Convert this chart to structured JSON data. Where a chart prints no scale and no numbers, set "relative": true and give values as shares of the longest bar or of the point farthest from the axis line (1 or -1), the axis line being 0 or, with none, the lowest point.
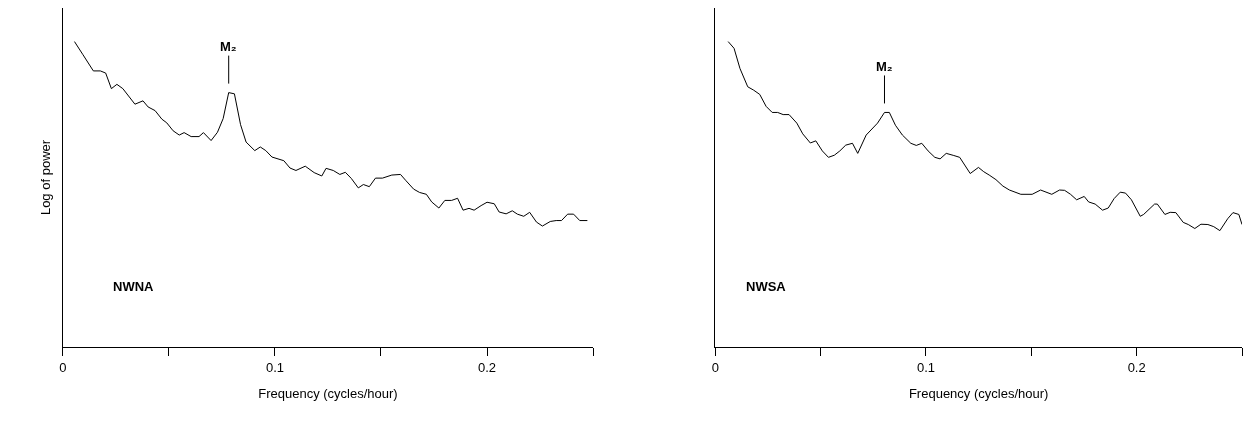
{
  "chart_data": [
    {
      "type": "line",
      "relative": true,
      "xlabel": "Frequency (cycles/hour)",
      "ylabel": "Log of power",
      "xlim": [
        0,
        0.25
      ],
      "xticks": [
        0,
        {
          "value": 0.05,
          "label": null
        },
        0.1,
        {
          "value": 0.15,
          "label": null
        },
        0.2,
        {
          "value": 0.25,
          "label": null
        }
      ],
      "tick_labels": "x",
      "annotations": [
        {
          "text": "M₂",
          "x": 0.0782,
          "y": 0.833
        },
        "NWNA"
      ],
      "series": [
        {
          "color": "#000000",
          "x": [
            0.0055,
            0.0095,
            0.0144,
            0.0177,
            0.0202,
            0.0229,
            0.0255,
            0.0283,
            0.034,
            0.0378,
            0.0402,
            0.0435,
            0.0467,
            0.049,
            0.052,
            0.0549,
            0.0572,
            0.0605,
            0.0642,
            0.0663,
            0.0699,
            0.0729,
            0.0756,
            0.0782,
            0.0809,
            0.0838,
            0.0864,
            0.0905,
            0.0931,
            0.0957,
            0.0986,
            0.1042,
            0.1071,
            0.1099,
            0.1143,
            0.1185,
            0.1221,
            0.1241,
            0.1275,
            0.1306,
            0.1332,
            0.136,
            0.1393,
            0.1417,
            0.1445,
            0.1474,
            0.1507,
            0.1551,
            0.1592,
            0.1616,
            0.1654,
            0.1682,
            0.1714,
            0.1739,
            0.1773,
            0.1801,
            0.1833,
            0.1861,
            0.1887,
            0.1915,
            0.1939,
            0.1972,
            0.2,
            0.2034,
            0.2057,
            0.209,
            0.2119,
            0.2143,
            0.2173,
            0.2201,
            0.2233,
            0.2261,
            0.2298,
            0.2326,
            0.2351,
            0.238,
            0.2408,
            0.2437,
            0.2473
          ],
          "values": [
            1.0,
            0.957,
            0.904,
            0.904,
            0.897,
            0.846,
            0.86,
            0.846,
            0.795,
            0.806,
            0.786,
            0.774,
            0.746,
            0.734,
            0.708,
            0.694,
            0.702,
            0.689,
            0.689,
            0.702,
            0.676,
            0.703,
            0.748,
            0.833,
            0.829,
            0.728,
            0.671,
            0.643,
            0.655,
            0.643,
            0.622,
            0.61,
            0.586,
            0.578,
            0.592,
            0.571,
            0.56,
            0.585,
            0.578,
            0.565,
            0.572,
            0.552,
            0.521,
            0.532,
            0.525,
            0.553,
            0.553,
            0.563,
            0.565,
            0.546,
            0.517,
            0.506,
            0.5,
            0.475,
            0.455,
            0.48,
            0.48,
            0.487,
            0.448,
            0.454,
            0.448,
            0.463,
            0.474,
            0.469,
            0.442,
            0.436,
            0.446,
            0.435,
            0.428,
            0.441,
            0.409,
            0.396,
            0.411,
            0.414,
            0.414,
            0.435,
            0.435,
            0.414,
            0.414
          ]
        }
      ]
    },
    {
      "type": "line",
      "relative": true,
      "xlabel": "Frequency (cycles/hour)",
      "xlim": [
        0,
        0.25
      ],
      "xticks": [
        0,
        {
          "value": 0.05,
          "label": null
        },
        0.1,
        {
          "value": 0.15,
          "label": null
        },
        0.2,
        {
          "value": 0.25,
          "label": null
        }
      ],
      "tick_labels": "x",
      "annotations": [
        {
          "text": "M₂",
          "x": 0.0803,
          "y": 0.768
        },
        "NWSA"
      ],
      "series": [
        {
          "color": "#000000",
          "x": [
            0.0061,
            0.0089,
            0.0117,
            0.0154,
            0.0182,
            0.0211,
            0.0241,
            0.027,
            0.0296,
            0.0322,
            0.035,
            0.0387,
            0.0415,
            0.0451,
            0.0477,
            0.0508,
            0.0537,
            0.0565,
            0.0591,
            0.0619,
            0.0651,
            0.0676,
            0.0716,
            0.077,
            0.0803,
            0.0826,
            0.0855,
            0.0888,
            0.0928,
            0.0954,
            0.098,
            0.101,
            0.1042,
            0.1067,
            0.1096,
            0.1132,
            0.116,
            0.121,
            0.1249,
            0.1274,
            0.13,
            0.1332,
            0.1365,
            0.1396,
            0.145,
            0.1504,
            0.1544,
            0.1597,
            0.1634,
            0.1658,
            0.1686,
            0.1715,
            0.1751,
            0.1772,
            0.1803,
            0.1838,
            0.1865,
            0.1893,
            0.1922,
            0.1947,
            0.1975,
            0.2017,
            0.2033,
            0.2085,
            0.2098,
            0.2134,
            0.2159,
            0.2186,
            0.2221,
            0.2245,
            0.2276,
            0.2305,
            0.2338,
            0.2366,
            0.2395,
            0.2432,
            0.2457,
            0.2485,
            0.25
          ],
          "values": [
            1.0,
            0.978,
            0.912,
            0.852,
            0.841,
            0.827,
            0.788,
            0.768,
            0.768,
            0.761,
            0.761,
            0.733,
            0.698,
            0.668,
            0.675,
            0.642,
            0.621,
            0.628,
            0.642,
            0.661,
            0.667,
            0.634,
            0.694,
            0.733,
            0.768,
            0.768,
            0.726,
            0.694,
            0.667,
            0.66,
            0.667,
            0.642,
            0.621,
            0.616,
            0.634,
            0.627,
            0.621,
            0.568,
            0.588,
            0.574,
            0.563,
            0.548,
            0.527,
            0.514,
            0.5,
            0.5,
            0.514,
            0.5,
            0.514,
            0.513,
            0.5,
            0.482,
            0.493,
            0.475,
            0.468,
            0.448,
            0.455,
            0.486,
            0.507,
            0.504,
            0.482,
            0.428,
            0.434,
            0.468,
            0.468,
            0.434,
            0.441,
            0.44,
            0.408,
            0.401,
            0.388,
            0.402,
            0.401,
            0.394,
            0.381,
            0.42,
            0.44,
            0.434,
            0.401
          ]
        }
      ]
    }
  ]
}
